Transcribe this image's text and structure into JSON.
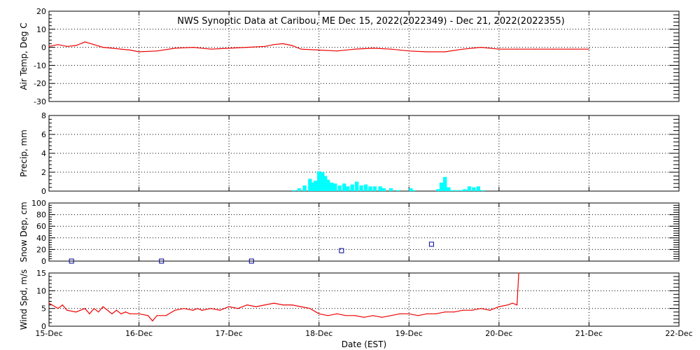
{
  "title": "NWS Synoptic Data at Caribou, ME    Dec 15, 2022(2022349) - Dec 21, 2022(2022355)",
  "xlabel": "Date (EST)",
  "colors": {
    "line": "#ee0000",
    "bar": "#00ffff",
    "marker": "#000099",
    "axes": "#000000"
  },
  "chart_data": [
    {
      "type": "line",
      "panel": "air-temp",
      "ylabel": "Air Temp, Deg C",
      "ylim": [
        -30,
        20
      ],
      "yticks": [
        20,
        10,
        0,
        -10,
        -20,
        -30
      ],
      "xlim": [
        0,
        7
      ],
      "xticks": [
        "15-Dec",
        "16-Dec",
        "17-Dec",
        "18-Dec",
        "19-Dec",
        "20-Dec",
        "21-Dec",
        "22-Dec"
      ],
      "grid": true,
      "series": [
        {
          "x": [
            0,
            0.1,
            0.2,
            0.3,
            0.4,
            0.5,
            0.6,
            0.7,
            0.8,
            0.9,
            1.0,
            1.2,
            1.4,
            1.6,
            1.8,
            2.0,
            2.2,
            2.4,
            2.5,
            2.6,
            2.7,
            2.8,
            3.0,
            3.2,
            3.4,
            3.6,
            3.8,
            4.0,
            4.2,
            4.4,
            4.6,
            4.8,
            5.0,
            5.2,
            5.4,
            5.6,
            5.8,
            6.0
          ],
          "y": [
            0.5,
            1.5,
            0.5,
            1.0,
            3.0,
            1.5,
            0.0,
            -0.5,
            -1.0,
            -1.5,
            -2.5,
            -2.0,
            -0.5,
            0.0,
            -1.0,
            -0.5,
            0.0,
            0.5,
            1.5,
            2.0,
            1.0,
            -1.0,
            -1.5,
            -2.0,
            -1.0,
            -0.5,
            -1.0,
            -2.0,
            -2.5,
            -2.5,
            -1.0,
            0.0,
            -1.0,
            -1.0,
            -1.0,
            -1.0,
            -1.0,
            -1.0
          ]
        }
      ]
    },
    {
      "type": "bar",
      "panel": "precip",
      "ylabel": "Precip, mm",
      "ylim": [
        0,
        8
      ],
      "yticks": [
        0,
        2,
        4,
        6,
        8
      ],
      "xlim": [
        0,
        7
      ],
      "grid": true,
      "x": [
        2.72,
        2.78,
        2.84,
        2.9,
        2.93,
        2.96,
        3.0,
        3.04,
        3.07,
        3.1,
        3.14,
        3.18,
        3.23,
        3.28,
        3.32,
        3.37,
        3.42,
        3.47,
        3.52,
        3.57,
        3.62,
        3.68,
        3.72,
        3.8,
        3.88,
        4.02,
        4.05,
        4.32,
        4.36,
        4.4,
        4.44,
        4.48,
        4.53,
        4.58,
        4.62,
        4.67,
        4.72,
        4.77,
        4.82
      ],
      "values": [
        0.1,
        0.3,
        0.6,
        1.3,
        0.9,
        1.1,
        2.1,
        2.0,
        1.6,
        1.2,
        0.9,
        0.8,
        0.6,
        0.8,
        0.5,
        0.7,
        1.0,
        0.6,
        0.7,
        0.5,
        0.5,
        0.5,
        0.3,
        0.3,
        0.1,
        0.3,
        0.1,
        0.2,
        0.9,
        1.5,
        0.4,
        0.1,
        0.1,
        0.1,
        0.2,
        0.5,
        0.4,
        0.5,
        0.1
      ]
    },
    {
      "type": "scatter",
      "panel": "snow-depth",
      "ylabel": "Snow Dep, cm",
      "ylim": [
        0,
        100
      ],
      "yticks": [
        0,
        20,
        40,
        60,
        80,
        100
      ],
      "xlim": [
        0,
        7
      ],
      "grid": true,
      "x": [
        0.25,
        1.25,
        2.25,
        3.25,
        4.25
      ],
      "y": [
        0,
        0,
        0,
        18,
        29
      ]
    },
    {
      "type": "line",
      "panel": "wind-speed",
      "ylabel": "Wind Spd, m/s",
      "ylim": [
        0,
        15
      ],
      "yticks": [
        0,
        5,
        10,
        15
      ],
      "xlim": [
        0,
        7
      ],
      "xticks": [
        "15-Dec",
        "16-Dec",
        "17-Dec",
        "18-Dec",
        "19-Dec",
        "20-Dec",
        "21-Dec",
        "22-Dec"
      ],
      "grid": true,
      "series": [
        {
          "x": [
            0,
            0.1,
            0.15,
            0.2,
            0.3,
            0.4,
            0.45,
            0.5,
            0.55,
            0.6,
            0.7,
            0.75,
            0.8,
            0.85,
            0.9,
            1.0,
            1.1,
            1.15,
            1.2,
            1.3,
            1.4,
            1.5,
            1.6,
            1.65,
            1.7,
            1.8,
            1.9,
            2.0,
            2.1,
            2.2,
            2.3,
            2.4,
            2.5,
            2.6,
            2.7,
            2.8,
            2.9,
            3.0,
            3.1,
            3.2,
            3.3,
            3.4,
            3.5,
            3.6,
            3.7,
            3.8,
            3.9,
            4.0,
            4.1,
            4.2,
            4.3,
            4.4,
            4.5,
            4.6,
            4.7,
            4.8,
            4.9,
            5.0,
            5.1,
            5.15,
            5.2,
            5.22
          ],
          "y": [
            6.5,
            5.0,
            6.0,
            4.5,
            4.0,
            5.0,
            3.5,
            5.0,
            4.0,
            5.5,
            3.5,
            4.5,
            3.5,
            4.0,
            3.5,
            3.5,
            3.0,
            1.5,
            3.0,
            3.0,
            4.5,
            5.0,
            4.5,
            5.0,
            4.5,
            5.0,
            4.5,
            5.5,
            5.0,
            6.0,
            5.5,
            6.0,
            6.5,
            6.0,
            6.0,
            5.5,
            5.0,
            3.5,
            3.0,
            3.5,
            3.0,
            3.0,
            2.5,
            3.0,
            2.5,
            3.0,
            3.5,
            3.5,
            3.0,
            3.5,
            3.5,
            4.0,
            4.0,
            4.5,
            4.5,
            5.0,
            4.5,
            5.5,
            6.0,
            6.5,
            6.0,
            15.0
          ]
        }
      ]
    }
  ]
}
